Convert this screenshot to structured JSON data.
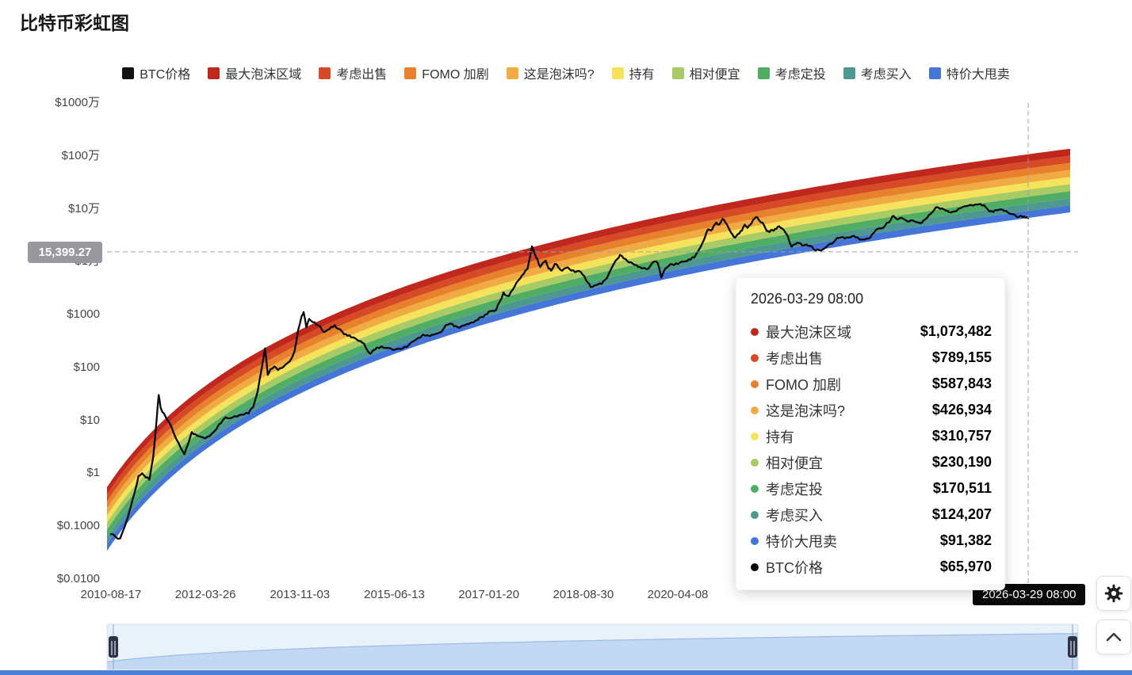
{
  "page": {
    "title": "比特币彩虹图"
  },
  "legend": {
    "items": [
      {
        "label": "BTC价格",
        "color": "#111111"
      },
      {
        "label": "最大泡沫区域",
        "color": "#c1281d"
      },
      {
        "label": "考虑出售",
        "color": "#d64a26"
      },
      {
        "label": "FOMO 加剧",
        "color": "#e8812c"
      },
      {
        "label": "这是泡沫吗?",
        "color": "#f0ac42"
      },
      {
        "label": "持有",
        "color": "#f6e35c"
      },
      {
        "label": "相对便宜",
        "color": "#a8cb65"
      },
      {
        "label": "考虑定投",
        "color": "#4fae63"
      },
      {
        "label": "考虑买入",
        "color": "#4e998f"
      },
      {
        "label": "特价大甩卖",
        "color": "#4576d7"
      }
    ]
  },
  "chart_data": {
    "type": "line",
    "title": "比特币彩虹图",
    "y_axis": {
      "scale": "log10",
      "tick_labels": [
        "$1000万",
        "$100万",
        "$10万",
        "$1万",
        "$1000",
        "$100",
        "$10",
        "$1",
        "$0.1000",
        "$0.0100"
      ],
      "tick_log10_values": [
        7,
        6,
        5,
        4,
        3,
        2,
        1,
        0,
        -1,
        -2
      ]
    },
    "x_axis": {
      "tick_labels": [
        "2010-08-17",
        "2012-03-26",
        "2013-11-03",
        "2015-06-13",
        "2017-01-20",
        "2018-08-30",
        "2020-04-08"
      ],
      "hover_date": "2026-03-29 08:00"
    },
    "bands": [
      {
        "name": "最大泡沫区域",
        "color": "#c1281d",
        "value_at_hover": 1073482
      },
      {
        "name": "考虑出售",
        "color": "#d64a26",
        "value_at_hover": 789155
      },
      {
        "name": "FOMO 加剧",
        "color": "#e8812c",
        "value_at_hover": 587843
      },
      {
        "name": "这是泡沫吗?",
        "color": "#f0ac42",
        "value_at_hover": 426934
      },
      {
        "name": "持有",
        "color": "#f6e35c",
        "value_at_hover": 310757
      },
      {
        "name": "相对便宜",
        "color": "#a8cb65",
        "value_at_hover": 230190
      },
      {
        "name": "考虑定投",
        "color": "#4fae63",
        "value_at_hover": 170511
      },
      {
        "name": "考虑买入",
        "color": "#4e998f",
        "value_at_hover": 124207
      },
      {
        "name": "特价大甩卖",
        "color": "#4576d7",
        "value_at_hover": 91382
      }
    ],
    "band_model": {
      "A": 2.611,
      "B": -17.4107,
      "days_at_left_edge": 590,
      "days_at_hover": 6294,
      "band_log10_width": 0.133743,
      "bands_count": 9
    },
    "btc_series": {
      "name": "BTC价格",
      "color": "#0a0a0a",
      "value_at_hover": 65970,
      "points_t_log10price": [
        [
          0.0,
          -1.15
        ],
        [
          0.005,
          -1.2
        ],
        [
          0.01,
          -1.23
        ],
        [
          0.014,
          -1.05
        ],
        [
          0.018,
          -0.85
        ],
        [
          0.022,
          -0.6
        ],
        [
          0.026,
          -0.35
        ],
        [
          0.03,
          -0.05
        ],
        [
          0.034,
          0.0
        ],
        [
          0.038,
          -0.08
        ],
        [
          0.042,
          -0.12
        ],
        [
          0.046,
          0.3
        ],
        [
          0.05,
          1.05
        ],
        [
          0.052,
          1.48
        ],
        [
          0.054,
          1.25
        ],
        [
          0.056,
          1.16
        ],
        [
          0.06,
          1.05
        ],
        [
          0.064,
          0.95
        ],
        [
          0.068,
          0.78
        ],
        [
          0.072,
          0.62
        ],
        [
          0.076,
          0.48
        ],
        [
          0.08,
          0.36
        ],
        [
          0.084,
          0.55
        ],
        [
          0.088,
          0.78
        ],
        [
          0.092,
          0.74
        ],
        [
          0.096,
          0.7
        ],
        [
          0.1,
          0.68
        ],
        [
          0.105,
          0.69
        ],
        [
          0.11,
          0.75
        ],
        [
          0.115,
          0.84
        ],
        [
          0.12,
          0.95
        ],
        [
          0.125,
          1.06
        ],
        [
          0.13,
          1.04
        ],
        [
          0.135,
          1.08
        ],
        [
          0.14,
          1.1
        ],
        [
          0.145,
          1.11
        ],
        [
          0.15,
          1.13
        ],
        [
          0.155,
          1.25
        ],
        [
          0.16,
          1.55
        ],
        [
          0.164,
          1.95
        ],
        [
          0.168,
          2.36
        ],
        [
          0.171,
          1.86
        ],
        [
          0.174,
          1.97
        ],
        [
          0.178,
          2.02
        ],
        [
          0.182,
          1.95
        ],
        [
          0.186,
          1.99
        ],
        [
          0.19,
          2.05
        ],
        [
          0.195,
          2.12
        ],
        [
          0.2,
          2.3
        ],
        [
          0.204,
          2.7
        ],
        [
          0.208,
          2.98
        ],
        [
          0.21,
          3.05
        ],
        [
          0.213,
          2.76
        ],
        [
          0.216,
          2.92
        ],
        [
          0.22,
          2.86
        ],
        [
          0.224,
          2.81
        ],
        [
          0.228,
          2.78
        ],
        [
          0.232,
          2.67
        ],
        [
          0.236,
          2.71
        ],
        [
          0.24,
          2.77
        ],
        [
          0.244,
          2.8
        ],
        [
          0.248,
          2.73
        ],
        [
          0.252,
          2.68
        ],
        [
          0.256,
          2.63
        ],
        [
          0.26,
          2.61
        ],
        [
          0.264,
          2.57
        ],
        [
          0.268,
          2.53
        ],
        [
          0.272,
          2.5
        ],
        [
          0.276,
          2.45
        ],
        [
          0.28,
          2.31
        ],
        [
          0.283,
          2.26
        ],
        [
          0.286,
          2.33
        ],
        [
          0.29,
          2.38
        ],
        [
          0.295,
          2.4
        ],
        [
          0.3,
          2.37
        ],
        [
          0.305,
          2.36
        ],
        [
          0.31,
          2.34
        ],
        [
          0.315,
          2.35
        ],
        [
          0.32,
          2.39
        ],
        [
          0.325,
          2.43
        ],
        [
          0.33,
          2.5
        ],
        [
          0.335,
          2.56
        ],
        [
          0.34,
          2.62
        ],
        [
          0.345,
          2.61
        ],
        [
          0.35,
          2.62
        ],
        [
          0.355,
          2.64
        ],
        [
          0.36,
          2.67
        ],
        [
          0.365,
          2.8
        ],
        [
          0.37,
          2.83
        ],
        [
          0.374,
          2.78
        ],
        [
          0.378,
          2.76
        ],
        [
          0.382,
          2.78
        ],
        [
          0.386,
          2.8
        ],
        [
          0.39,
          2.82
        ],
        [
          0.395,
          2.85
        ],
        [
          0.4,
          2.9
        ],
        [
          0.404,
          2.95
        ],
        [
          0.408,
          3.0
        ],
        [
          0.412,
          3.06
        ],
        [
          0.416,
          3.07
        ],
        [
          0.42,
          3.09
        ],
        [
          0.424,
          3.25
        ],
        [
          0.428,
          3.42
        ],
        [
          0.431,
          3.36
        ],
        [
          0.434,
          3.35
        ],
        [
          0.438,
          3.47
        ],
        [
          0.442,
          3.6
        ],
        [
          0.446,
          3.68
        ],
        [
          0.45,
          3.77
        ],
        [
          0.454,
          3.86
        ],
        [
          0.459,
          4.29
        ],
        [
          0.462,
          4.15
        ],
        [
          0.465,
          4.05
        ],
        [
          0.468,
          3.9
        ],
        [
          0.471,
          3.98
        ],
        [
          0.474,
          4.02
        ],
        [
          0.477,
          3.87
        ],
        [
          0.48,
          3.83
        ],
        [
          0.484,
          3.96
        ],
        [
          0.488,
          3.89
        ],
        [
          0.492,
          3.83
        ],
        [
          0.496,
          3.88
        ],
        [
          0.5,
          3.86
        ],
        [
          0.504,
          3.84
        ],
        [
          0.508,
          3.82
        ],
        [
          0.512,
          3.81
        ],
        [
          0.516,
          3.73
        ],
        [
          0.52,
          3.6
        ],
        [
          0.523,
          3.52
        ],
        [
          0.527,
          3.55
        ],
        [
          0.531,
          3.57
        ],
        [
          0.535,
          3.58
        ],
        [
          0.539,
          3.66
        ],
        [
          0.543,
          3.78
        ],
        [
          0.548,
          3.95
        ],
        [
          0.552,
          4.05
        ],
        [
          0.555,
          4.13
        ],
        [
          0.559,
          4.06
        ],
        [
          0.563,
          4.01
        ],
        [
          0.567,
          3.99
        ],
        [
          0.571,
          3.94
        ],
        [
          0.575,
          3.9
        ],
        [
          0.579,
          3.87
        ],
        [
          0.584,
          3.86
        ],
        [
          0.588,
          3.92
        ],
        [
          0.592,
          4.0
        ],
        [
          0.596,
          3.98
        ],
        [
          0.6,
          3.7
        ],
        [
          0.604,
          3.86
        ],
        [
          0.608,
          3.92
        ],
        [
          0.612,
          3.95
        ],
        [
          0.616,
          3.97
        ],
        [
          0.62,
          3.98
        ],
        [
          0.624,
          4.0
        ],
        [
          0.628,
          4.01
        ],
        [
          0.632,
          4.04
        ],
        [
          0.636,
          4.08
        ],
        [
          0.64,
          4.2
        ],
        [
          0.645,
          4.36
        ],
        [
          0.648,
          4.48
        ],
        [
          0.651,
          4.61
        ],
        [
          0.654,
          4.59
        ],
        [
          0.657,
          4.67
        ],
        [
          0.66,
          4.74
        ],
        [
          0.663,
          4.7
        ],
        [
          0.667,
          4.81
        ],
        [
          0.67,
          4.74
        ],
        [
          0.673,
          4.65
        ],
        [
          0.676,
          4.55
        ],
        [
          0.679,
          4.47
        ],
        [
          0.682,
          4.49
        ],
        [
          0.685,
          4.53
        ],
        [
          0.688,
          4.59
        ],
        [
          0.691,
          4.7
        ],
        [
          0.694,
          4.64
        ],
        [
          0.697,
          4.7
        ],
        [
          0.7,
          4.79
        ],
        [
          0.703,
          4.84
        ],
        [
          0.706,
          4.8
        ],
        [
          0.709,
          4.74
        ],
        [
          0.712,
          4.69
        ],
        [
          0.715,
          4.58
        ],
        [
          0.718,
          4.56
        ],
        [
          0.721,
          4.6
        ],
        [
          0.724,
          4.62
        ],
        [
          0.727,
          4.66
        ],
        [
          0.73,
          4.64
        ],
        [
          0.734,
          4.59
        ],
        [
          0.738,
          4.48
        ],
        [
          0.742,
          4.28
        ],
        [
          0.745,
          4.33
        ],
        [
          0.748,
          4.36
        ],
        [
          0.752,
          4.34
        ],
        [
          0.756,
          4.31
        ],
        [
          0.76,
          4.3
        ],
        [
          0.764,
          4.29
        ],
        [
          0.768,
          4.21
        ],
        [
          0.772,
          4.22
        ],
        [
          0.776,
          4.23
        ],
        [
          0.78,
          4.28
        ],
        [
          0.784,
          4.34
        ],
        [
          0.788,
          4.37
        ],
        [
          0.792,
          4.45
        ],
        [
          0.796,
          4.46
        ],
        [
          0.8,
          4.44
        ],
        [
          0.804,
          4.46
        ],
        [
          0.808,
          4.48
        ],
        [
          0.812,
          4.46
        ],
        [
          0.816,
          4.42
        ],
        [
          0.82,
          4.42
        ],
        [
          0.824,
          4.44
        ],
        [
          0.828,
          4.46
        ],
        [
          0.832,
          4.55
        ],
        [
          0.836,
          4.62
        ],
        [
          0.84,
          4.63
        ],
        [
          0.844,
          4.68
        ],
        [
          0.848,
          4.74
        ],
        [
          0.852,
          4.86
        ],
        [
          0.855,
          4.83
        ],
        [
          0.858,
          4.8
        ],
        [
          0.862,
          4.83
        ],
        [
          0.866,
          4.79
        ],
        [
          0.87,
          4.76
        ],
        [
          0.874,
          4.78
        ],
        [
          0.878,
          4.75
        ],
        [
          0.882,
          4.73
        ],
        [
          0.886,
          4.78
        ],
        [
          0.89,
          4.83
        ],
        [
          0.894,
          4.91
        ],
        [
          0.898,
          4.99
        ],
        [
          0.901,
          5.03
        ],
        [
          0.904,
          5.0
        ],
        [
          0.908,
          4.99
        ],
        [
          0.912,
          4.96
        ],
        [
          0.916,
          4.93
        ],
        [
          0.92,
          4.95
        ],
        [
          0.924,
          5.0
        ],
        [
          0.928,
          5.03
        ],
        [
          0.932,
          5.05
        ],
        [
          0.936,
          5.07
        ],
        [
          0.94,
          5.06
        ],
        [
          0.944,
          5.08
        ],
        [
          0.948,
          5.09
        ],
        [
          0.952,
          5.07
        ],
        [
          0.955,
          5.01
        ],
        [
          0.958,
          4.95
        ],
        [
          0.962,
          4.94
        ],
        [
          0.966,
          4.97
        ],
        [
          0.97,
          4.99
        ],
        [
          0.974,
          4.96
        ],
        [
          0.978,
          4.93
        ],
        [
          0.982,
          4.9
        ],
        [
          0.986,
          4.88
        ],
        [
          0.99,
          4.85
        ],
        [
          0.994,
          4.84
        ],
        [
          0.997,
          4.83
        ],
        [
          1.0,
          4.82
        ]
      ]
    }
  },
  "crosshair": {
    "y_axis_label": "15,399.27",
    "x_axis_label": "2026-03-29 08:00"
  },
  "tooltip": {
    "title": "2026-03-29 08:00"
  },
  "datazoom": {
    "selected_range": "full"
  }
}
